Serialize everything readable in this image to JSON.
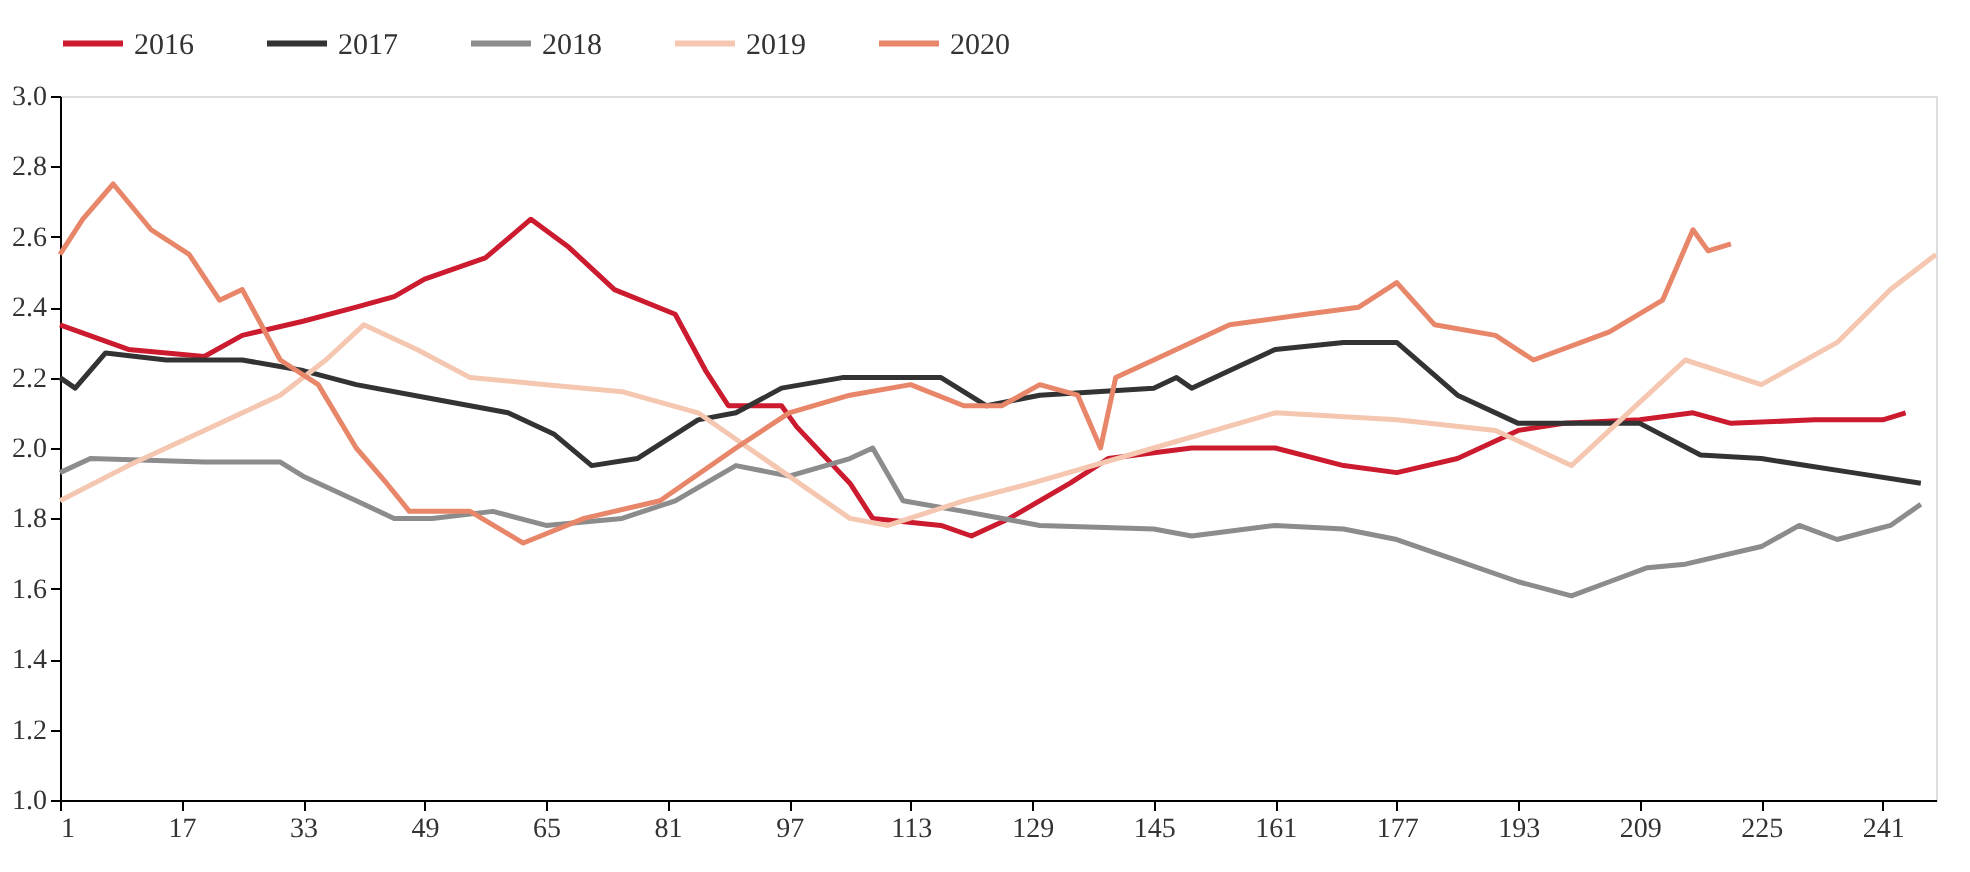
{
  "chart_data": {
    "type": "line",
    "xlim": [
      1,
      248
    ],
    "xticks": [
      1,
      17,
      33,
      49,
      65,
      81,
      97,
      113,
      129,
      145,
      161,
      177,
      193,
      209,
      225,
      241
    ],
    "ylim": [
      1.0,
      3.0
    ],
    "yticks": [
      {
        "value": 1.0,
        "label": "1.0"
      },
      1.2,
      1.4,
      1.6,
      1.8,
      {
        "value": 2.0,
        "label": "2.0"
      },
      2.2,
      2.4,
      2.6,
      2.8,
      {
        "value": 3.0,
        "label": "3.0"
      }
    ],
    "grid": false,
    "legend": "top",
    "line_style": "solid",
    "marker": "none",
    "series": [
      {
        "name": "2016",
        "color": "#cc1a2e",
        "x": [
          1,
          10,
          20,
          25,
          33,
          40,
          45,
          49,
          57,
          63,
          68,
          74,
          82,
          86,
          89,
          96,
          98,
          105,
          108,
          117,
          121,
          126,
          134,
          139,
          150,
          161,
          170,
          177,
          185,
          193,
          199,
          209,
          216,
          221,
          232,
          241,
          244
        ],
        "values": [
          2.35,
          2.28,
          2.26,
          2.32,
          2.36,
          2.4,
          2.43,
          2.48,
          2.54,
          2.65,
          2.57,
          2.45,
          2.38,
          2.22,
          2.12,
          2.12,
          2.06,
          1.9,
          1.8,
          1.78,
          1.75,
          1.8,
          1.9,
          1.97,
          2.0,
          2.0,
          1.95,
          1.93,
          1.97,
          2.05,
          2.07,
          2.08,
          2.1,
          2.07,
          2.08,
          2.08,
          2.1
        ]
      },
      {
        "name": "2017",
        "color": "#333333",
        "x": [
          1,
          3,
          7,
          15,
          25,
          33,
          40,
          50,
          60,
          66,
          71,
          77,
          85,
          90,
          96,
          104,
          117,
          123,
          130,
          145,
          148,
          150,
          156,
          161,
          170,
          177,
          185,
          193,
          209,
          217,
          225,
          237,
          246
        ],
        "values": [
          2.2,
          2.17,
          2.27,
          2.25,
          2.25,
          2.22,
          2.18,
          2.14,
          2.1,
          2.04,
          1.95,
          1.97,
          2.08,
          2.1,
          2.17,
          2.2,
          2.2,
          2.12,
          2.15,
          2.17,
          2.2,
          2.17,
          2.23,
          2.28,
          2.3,
          2.3,
          2.15,
          2.07,
          2.07,
          1.98,
          1.97,
          1.93,
          1.9
        ]
      },
      {
        "name": "2018",
        "color": "#8c8c8c",
        "x": [
          1,
          5,
          20,
          30,
          33,
          40,
          45,
          50,
          58,
          65,
          75,
          82,
          90,
          97,
          105,
          108,
          112,
          120,
          130,
          145,
          150,
          161,
          170,
          177,
          185,
          193,
          200,
          205,
          210,
          215,
          225,
          230,
          235,
          242,
          246
        ],
        "values": [
          1.93,
          1.97,
          1.96,
          1.96,
          1.92,
          1.85,
          1.8,
          1.8,
          1.82,
          1.78,
          1.8,
          1.85,
          1.95,
          1.92,
          1.97,
          2.0,
          1.85,
          1.82,
          1.78,
          1.77,
          1.75,
          1.78,
          1.77,
          1.74,
          1.68,
          1.62,
          1.58,
          1.62,
          1.66,
          1.67,
          1.72,
          1.78,
          1.74,
          1.78,
          1.84
        ]
      },
      {
        "name": "2019",
        "color": "#f5c6b0",
        "x": [
          1,
          10,
          20,
          30,
          36,
          41,
          48,
          55,
          65,
          75,
          85,
          95,
          105,
          110,
          120,
          129,
          145,
          161,
          177,
          190,
          200,
          205,
          210,
          215,
          225,
          235,
          242,
          248
        ],
        "values": [
          1.85,
          1.95,
          2.05,
          2.15,
          2.25,
          2.35,
          2.28,
          2.2,
          2.18,
          2.16,
          2.1,
          1.95,
          1.8,
          1.78,
          1.85,
          1.9,
          2.0,
          2.1,
          2.08,
          2.05,
          1.95,
          2.05,
          2.15,
          2.25,
          2.18,
          2.3,
          2.45,
          2.55
        ]
      },
      {
        "name": "2020",
        "color": "#e8866a",
        "x": [
          1,
          4,
          8,
          13,
          18,
          22,
          25,
          30,
          35,
          40,
          44,
          47,
          55,
          62,
          70,
          80,
          90,
          97,
          105,
          113,
          120,
          125,
          130,
          135,
          138,
          140,
          145,
          155,
          165,
          172,
          177,
          182,
          190,
          195,
          205,
          212,
          216,
          218,
          221
        ],
        "values": [
          2.55,
          2.65,
          2.75,
          2.62,
          2.55,
          2.42,
          2.45,
          2.25,
          2.18,
          2.0,
          1.9,
          1.82,
          1.82,
          1.73,
          1.8,
          1.85,
          2.0,
          2.1,
          2.15,
          2.18,
          2.12,
          2.12,
          2.18,
          2.15,
          2.0,
          2.2,
          2.25,
          2.35,
          2.38,
          2.4,
          2.47,
          2.35,
          2.32,
          2.25,
          2.33,
          2.42,
          2.62,
          2.56,
          2.58
        ]
      }
    ]
  }
}
